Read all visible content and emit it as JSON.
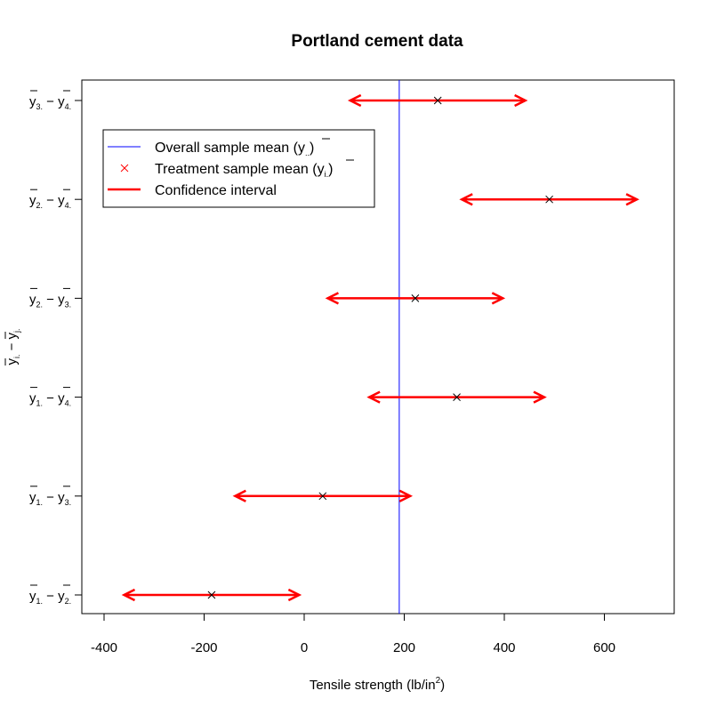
{
  "chart_data": {
    "type": "scatter",
    "title": "Portland cement data",
    "xlabel": "Tensile strength (lb/in²)",
    "xlabel_main": "Tensile strength (lb/in",
    "xlabel_sup": "2",
    "xlabel_end": ")",
    "ylabel": "ȳi. − ȳj.",
    "xlim": [
      -440,
      740
    ],
    "x_ticks": [
      -400,
      -200,
      0,
      200,
      400,
      600
    ],
    "x_tick_labels": [
      "-400",
      "-200",
      "0",
      "200",
      "400",
      "600"
    ],
    "overall_mean": 190,
    "comparisons": [
      {
        "i": "1",
        "j": "2",
        "estimate": -185,
        "lower": -360,
        "upper": -10
      },
      {
        "i": "1",
        "j": "3",
        "estimate": 37,
        "lower": -138,
        "upper": 212
      },
      {
        "i": "1",
        "j": "4",
        "estimate": 305,
        "lower": 130,
        "upper": 480
      },
      {
        "i": "2",
        "j": "3",
        "estimate": 222,
        "lower": 47,
        "upper": 397
      },
      {
        "i": "2",
        "j": "4",
        "estimate": 490,
        "lower": 315,
        "upper": 665
      },
      {
        "i": "3",
        "j": "4",
        "estimate": 267,
        "lower": 92,
        "upper": 442
      }
    ],
    "legend": {
      "position": "top-left",
      "entries": [
        {
          "label": "Overall sample mean (ȳ..)",
          "label_main": "Overall sample mean (",
          "label_sym": "y",
          "label_sub": "..",
          "label_end": ")",
          "marker": "line",
          "color": "#0000ff"
        },
        {
          "label": "Treatment sample mean (ȳi.)",
          "label_main": "Treatment sample mean (",
          "label_sym": "y",
          "label_sub": "i.",
          "label_end": ")",
          "marker": "x",
          "color": "#ff0000"
        },
        {
          "label": "Confidence interval",
          "label_main": "Confidence interval",
          "label_sym": "",
          "label_sub": "",
          "label_end": "",
          "marker": "thick-line",
          "color": "#ff0000"
        }
      ]
    },
    "colors": {
      "interval": "#ff0000",
      "mean_line": "#0000ff",
      "estimate_marker": "#000000",
      "axes": "#000000"
    },
    "grid": false
  }
}
